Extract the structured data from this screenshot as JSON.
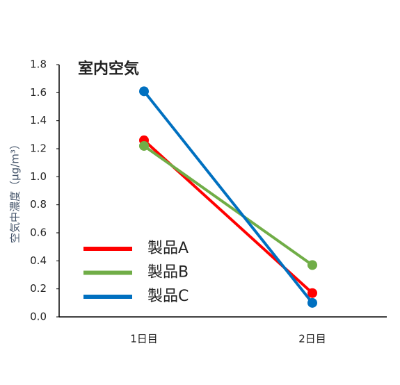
{
  "chart_data": {
    "type": "line",
    "title": "室内空気",
    "y_label": "空気中濃度（μg/m³）",
    "categories": [
      "1日目",
      "2日目"
    ],
    "series": [
      {
        "name": "製品A",
        "color": "#ff0000",
        "values": [
          1.26,
          0.17
        ]
      },
      {
        "name": "製品B",
        "color": "#70ad47",
        "values": [
          1.22,
          0.37
        ]
      },
      {
        "name": "製品C",
        "color": "#0070c0",
        "values": [
          1.61,
          0.1
        ]
      }
    ],
    "ylim": [
      0,
      1.8
    ],
    "yticks": [
      {
        "value": 0,
        "label": "0.0"
      },
      0.2,
      0.4,
      0.6,
      0.8,
      {
        "value": 1,
        "label": "1.0"
      },
      1.2,
      1.4,
      1.6,
      1.8
    ],
    "grid": false,
    "legend": "lower-left"
  }
}
